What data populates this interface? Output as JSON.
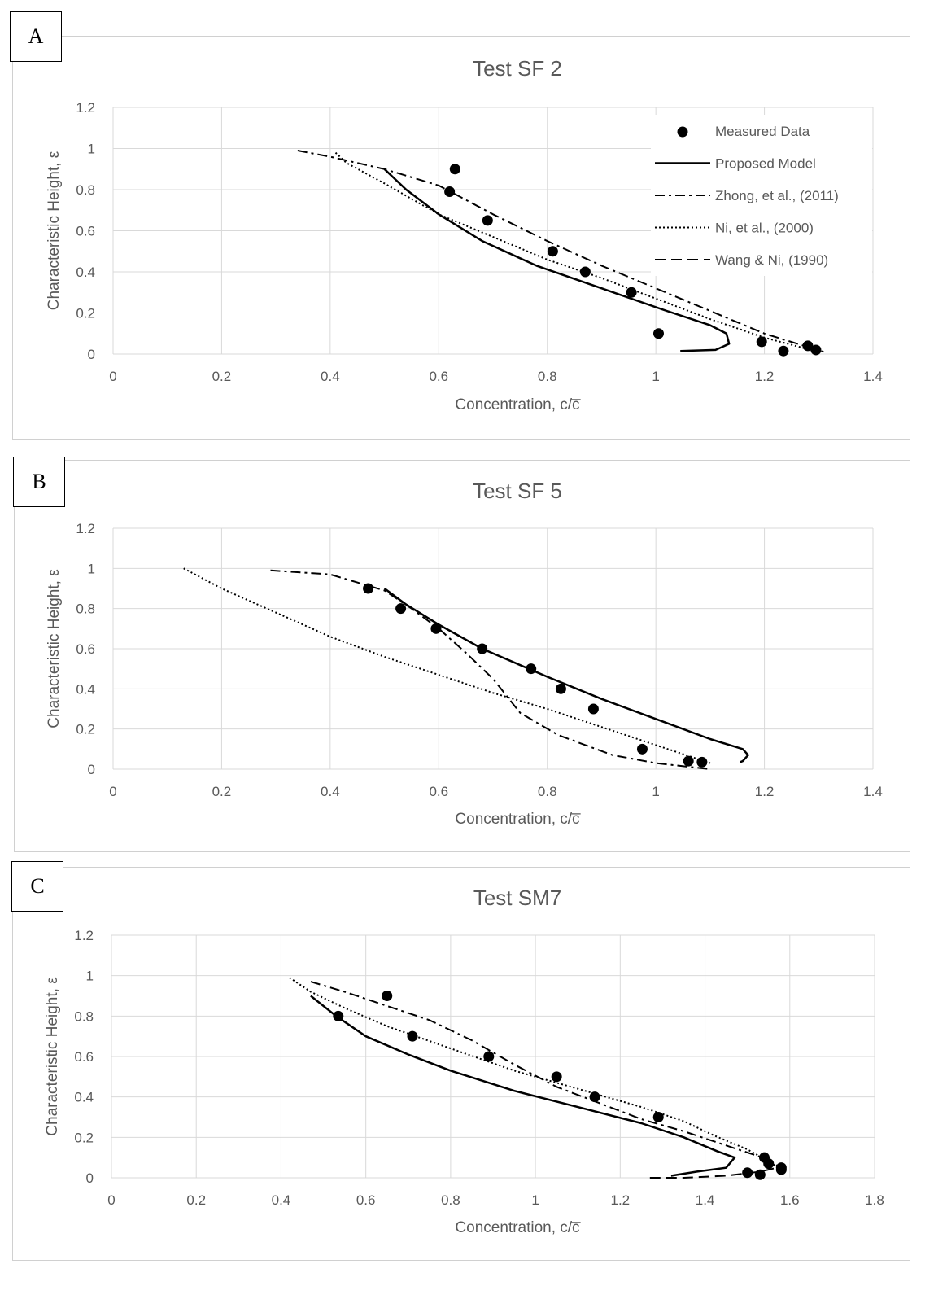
{
  "colors": {
    "series": "#000000",
    "grid": "#d9d9d9",
    "text": "#595959"
  },
  "chart_data": [
    {
      "panel_label": "A",
      "type": "line",
      "title": "Test SF 2",
      "xlabel": "Concentration, c/c̅",
      "ylabel": "Characteristic Height, ε",
      "xlim": [
        0,
        1.4
      ],
      "ylim": [
        0,
        1.2
      ],
      "xticks": [
        "0",
        "0.2",
        "0.4",
        "0.6",
        "0.8",
        "1",
        "1.2",
        "1.4"
      ],
      "yticks": [
        "0",
        "0.2",
        "0.4",
        "0.6",
        "0.8",
        "1",
        "1.2"
      ],
      "grid": true,
      "legend": "top-right",
      "series": [
        {
          "name": "Measured Data",
          "style": "points",
          "points": [
            [
              0.63,
              0.9
            ],
            [
              0.62,
              0.79
            ],
            [
              0.69,
              0.65
            ],
            [
              0.81,
              0.5
            ],
            [
              0.87,
              0.4
            ],
            [
              0.955,
              0.3
            ],
            [
              1.005,
              0.1
            ],
            [
              1.195,
              0.06
            ],
            [
              1.28,
              0.04
            ],
            [
              1.235,
              0.015
            ],
            [
              1.295,
              0.02
            ]
          ]
        },
        {
          "name": "Proposed Model",
          "style": "solid",
          "points": [
            [
              0.5,
              0.9
            ],
            [
              0.54,
              0.8
            ],
            [
              0.6,
              0.68
            ],
            [
              0.68,
              0.55
            ],
            [
              0.78,
              0.43
            ],
            [
              0.9,
              0.32
            ],
            [
              1.02,
              0.21
            ],
            [
              1.1,
              0.14
            ],
            [
              1.13,
              0.1
            ],
            [
              1.135,
              0.05
            ],
            [
              1.11,
              0.02
            ],
            [
              1.045,
              0.015
            ]
          ]
        },
        {
          "name": "Zhong, et al., (2011)",
          "style": "dashdot",
          "points": [
            [
              0.34,
              0.99
            ],
            [
              0.4,
              0.96
            ],
            [
              0.45,
              0.93
            ],
            [
              0.5,
              0.9
            ],
            [
              0.6,
              0.82
            ],
            [
              0.7,
              0.68
            ],
            [
              0.8,
              0.55
            ],
            [
              0.9,
              0.43
            ],
            [
              1.0,
              0.32
            ],
            [
              1.1,
              0.21
            ],
            [
              1.2,
              0.1
            ],
            [
              1.31,
              0.01
            ]
          ]
        },
        {
          "name": "Ni, et al., (2000)",
          "style": "dotted",
          "points": [
            [
              0.41,
              0.98
            ],
            [
              0.43,
              0.93
            ],
            [
              0.5,
              0.83
            ],
            [
              0.6,
              0.68
            ],
            [
              0.7,
              0.57
            ],
            [
              0.8,
              0.46
            ],
            [
              0.9,
              0.37
            ],
            [
              1.0,
              0.27
            ],
            [
              1.1,
              0.17
            ],
            [
              1.2,
              0.08
            ],
            [
              1.3,
              0.01
            ]
          ]
        },
        {
          "name": "Wang & Ni, (1990)",
          "style": "dashed",
          "points": []
        }
      ]
    },
    {
      "panel_label": "B",
      "type": "line",
      "title": "Test SF 5",
      "xlabel": "Concentration, c/c̅",
      "ylabel": "Characteristic Height, ε",
      "xlim": [
        0,
        1.4
      ],
      "ylim": [
        0,
        1.2
      ],
      "xticks": [
        "0",
        "0.2",
        "0.4",
        "0.6",
        "0.8",
        "1",
        "1.2",
        "1.4"
      ],
      "yticks": [
        "0",
        "0.2",
        "0.4",
        "0.6",
        "0.8",
        "1",
        "1.2"
      ],
      "grid": true,
      "series": [
        {
          "name": "Measured Data",
          "style": "points",
          "points": [
            [
              0.47,
              0.9
            ],
            [
              0.53,
              0.8
            ],
            [
              0.595,
              0.7
            ],
            [
              0.68,
              0.6
            ],
            [
              0.77,
              0.5
            ],
            [
              0.825,
              0.4
            ],
            [
              0.885,
              0.3
            ],
            [
              0.975,
              0.1
            ],
            [
              1.06,
              0.04
            ],
            [
              1.085,
              0.035
            ]
          ]
        },
        {
          "name": "Proposed Model",
          "style": "solid",
          "points": [
            [
              0.5,
              0.9
            ],
            [
              0.54,
              0.82
            ],
            [
              0.6,
              0.72
            ],
            [
              0.68,
              0.6
            ],
            [
              0.8,
              0.46
            ],
            [
              0.9,
              0.35
            ],
            [
              1.0,
              0.25
            ],
            [
              1.1,
              0.15
            ],
            [
              1.16,
              0.1
            ],
            [
              1.17,
              0.07
            ],
            [
              1.16,
              0.04
            ],
            [
              1.155,
              0.035
            ]
          ]
        },
        {
          "name": "Zhong, et al., (2011)",
          "style": "dashdot",
          "points": [
            [
              0.29,
              0.99
            ],
            [
              0.4,
              0.97
            ],
            [
              0.45,
              0.93
            ],
            [
              0.5,
              0.89
            ],
            [
              0.55,
              0.8
            ],
            [
              0.6,
              0.7
            ],
            [
              0.65,
              0.58
            ],
            [
              0.7,
              0.45
            ],
            [
              0.75,
              0.28
            ],
            [
              0.82,
              0.17
            ],
            [
              0.92,
              0.07
            ],
            [
              1.0,
              0.03
            ],
            [
              1.1,
              0.0
            ]
          ]
        },
        {
          "name": "Ni, et al., (2000)",
          "style": "dotted",
          "points": [
            [
              0.13,
              1.0
            ],
            [
              0.2,
              0.9
            ],
            [
              0.3,
              0.78
            ],
            [
              0.4,
              0.66
            ],
            [
              0.5,
              0.56
            ],
            [
              0.6,
              0.47
            ],
            [
              0.7,
              0.38
            ],
            [
              0.8,
              0.3
            ],
            [
              0.9,
              0.21
            ],
            [
              1.0,
              0.12
            ],
            [
              1.1,
              0.03
            ]
          ]
        }
      ]
    },
    {
      "panel_label": "C",
      "type": "line",
      "title": "Test SM7",
      "xlabel": "Concentration, c/c̅",
      "ylabel": "Characteristic Height, ε",
      "xlim": [
        0,
        1.8
      ],
      "ylim": [
        0,
        1.2
      ],
      "xticks": [
        "0",
        "0.2",
        "0.4",
        "0.6",
        "0.8",
        "1",
        "1.2",
        "1.4",
        "1.6",
        "1.8"
      ],
      "yticks": [
        "0",
        "0.2",
        "0.4",
        "0.6",
        "0.8",
        "1",
        "1.2"
      ],
      "grid": true,
      "series": [
        {
          "name": "Measured Data",
          "style": "points",
          "points": [
            [
              0.65,
              0.9
            ],
            [
              0.535,
              0.8
            ],
            [
              0.71,
              0.7
            ],
            [
              0.89,
              0.6
            ],
            [
              1.05,
              0.5
            ],
            [
              1.14,
              0.4
            ],
            [
              1.29,
              0.3
            ],
            [
              1.54,
              0.1
            ],
            [
              1.55,
              0.07
            ],
            [
              1.58,
              0.05
            ],
            [
              1.58,
              0.04
            ],
            [
              1.5,
              0.025
            ],
            [
              1.53,
              0.015
            ]
          ]
        },
        {
          "name": "Proposed Model",
          "style": "solid",
          "points": [
            [
              0.47,
              0.9
            ],
            [
              0.53,
              0.8
            ],
            [
              0.6,
              0.7
            ],
            [
              0.7,
              0.61
            ],
            [
              0.8,
              0.53
            ],
            [
              0.95,
              0.43
            ],
            [
              1.1,
              0.35
            ],
            [
              1.25,
              0.27
            ],
            [
              1.35,
              0.2
            ],
            [
              1.43,
              0.13
            ],
            [
              1.47,
              0.1
            ],
            [
              1.45,
              0.05
            ],
            [
              1.38,
              0.03
            ],
            [
              1.32,
              0.01
            ]
          ]
        },
        {
          "name": "Zhong, et al., (2011)",
          "style": "dashdot",
          "points": [
            [
              0.47,
              0.97
            ],
            [
              0.55,
              0.92
            ],
            [
              0.65,
              0.85
            ],
            [
              0.75,
              0.78
            ],
            [
              0.85,
              0.68
            ],
            [
              0.95,
              0.56
            ],
            [
              1.05,
              0.45
            ],
            [
              1.15,
              0.37
            ],
            [
              1.25,
              0.29
            ],
            [
              1.35,
              0.23
            ],
            [
              1.45,
              0.16
            ],
            [
              1.55,
              0.09
            ],
            [
              1.57,
              0.06
            ]
          ]
        },
        {
          "name": "Ni, et al., (2000)",
          "style": "dotted",
          "points": [
            [
              0.42,
              0.99
            ],
            [
              0.47,
              0.92
            ],
            [
              0.55,
              0.84
            ],
            [
              0.65,
              0.75
            ],
            [
              0.8,
              0.64
            ],
            [
              0.95,
              0.53
            ],
            [
              1.1,
              0.44
            ],
            [
              1.25,
              0.35
            ],
            [
              1.35,
              0.28
            ],
            [
              1.42,
              0.21
            ],
            [
              1.5,
              0.14
            ],
            [
              1.56,
              0.07
            ],
            [
              1.57,
              0.05
            ]
          ]
        },
        {
          "name": "Wang & Ni, (1990)",
          "style": "dashed",
          "points": [
            [
              1.27,
              0.0
            ],
            [
              1.35,
              0.0
            ],
            [
              1.45,
              0.01
            ],
            [
              1.53,
              0.03
            ],
            [
              1.57,
              0.05
            ]
          ]
        }
      ]
    }
  ]
}
